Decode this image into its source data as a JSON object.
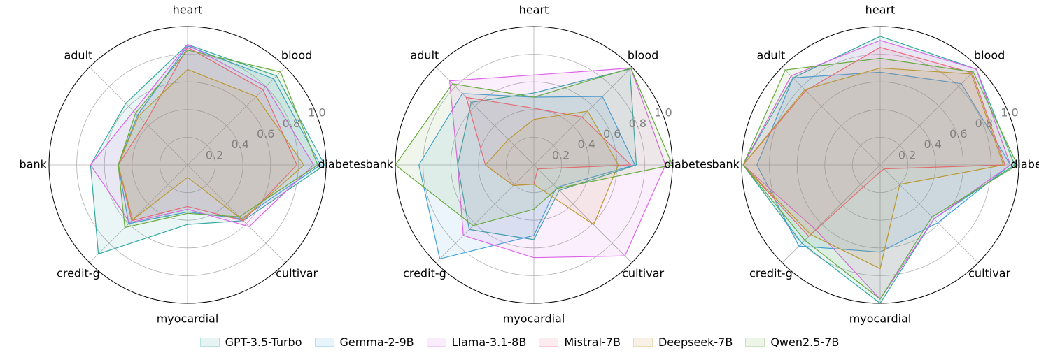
{
  "chart_data": [
    {
      "type": "radar",
      "axes": [
        "diabetes",
        "blood",
        "heart",
        "adult",
        "bank",
        "credit-g",
        "myocardial",
        "cultivar"
      ],
      "rticks": [
        0.2,
        0.4,
        0.6,
        0.8,
        1.0
      ],
      "rlim": [
        0,
        1.0
      ],
      "grid": true,
      "series": [
        {
          "name": "GPT-3.5-Turbo",
          "values": [
            0.99,
            0.91,
            0.87,
            0.63,
            0.7,
            0.91,
            0.43,
            0.57
          ]
        },
        {
          "name": "Gemma-2-9B",
          "values": [
            0.96,
            0.88,
            0.86,
            0.51,
            0.5,
            0.6,
            0.34,
            0.55
          ]
        },
        {
          "name": "Llama-3.1-8B",
          "values": [
            0.91,
            0.8,
            0.87,
            0.55,
            0.7,
            0.59,
            0.32,
            0.63
          ]
        },
        {
          "name": "Mistral-7B",
          "values": [
            0.79,
            0.77,
            0.85,
            0.43,
            0.5,
            0.57,
            0.3,
            0.57
          ]
        },
        {
          "name": "Deepseek-7B",
          "values": [
            0.84,
            0.7,
            0.69,
            0.5,
            0.5,
            0.56,
            0.09,
            0.56
          ]
        },
        {
          "name": "Qwen2.5-7B",
          "values": [
            0.94,
            0.95,
            0.83,
            0.53,
            0.5,
            0.64,
            0.35,
            0.53
          ]
        }
      ]
    },
    {
      "type": "radar",
      "axes": [
        "diabetes",
        "blood",
        "heart",
        "adult",
        "bank",
        "credit-g",
        "myocardial",
        "cultivar"
      ],
      "rticks": [
        0.2,
        0.4,
        0.6,
        0.8,
        1.0
      ],
      "rlim": [
        0,
        1.0
      ],
      "grid": true,
      "series": [
        {
          "name": "GPT-3.5-Turbo",
          "values": [
            0.74,
            0.98,
            0.52,
            0.64,
            0.55,
            0.66,
            0.54,
            0.26
          ]
        },
        {
          "name": "Gemma-2-9B",
          "values": [
            0.73,
            0.7,
            0.49,
            0.73,
            0.83,
            0.96,
            0.51,
            0.23
          ]
        },
        {
          "name": "Llama-3.1-8B",
          "values": [
            0.95,
            0.99,
            0.65,
            0.86,
            0.55,
            0.72,
            0.67,
            0.93
          ]
        },
        {
          "name": "Mistral-7B",
          "values": [
            0.7,
            0.49,
            0.41,
            0.69,
            0.35,
            0.21,
            0.14,
            0.04
          ]
        },
        {
          "name": "Deepseek-7B",
          "values": [
            0.61,
            0.55,
            0.33,
            0.26,
            0.35,
            0.21,
            0.14,
            0.61
          ]
        },
        {
          "name": "Qwen2.5-7B",
          "values": [
            1.0,
            0.99,
            0.49,
            0.83,
            1.0,
            0.62,
            0.32,
            0.24
          ]
        }
      ]
    },
    {
      "type": "radar",
      "axes": [
        "diabetes",
        "blood",
        "heart",
        "adult",
        "bank",
        "credit-g",
        "myocardial",
        "cultivar"
      ],
      "rticks": [
        0.2,
        0.4,
        0.6,
        0.8,
        1.0
      ],
      "rlim": [
        0,
        1.0
      ],
      "grid": true,
      "series": [
        {
          "name": "GPT-3.5-Turbo",
          "values": [
            0.97,
            0.98,
            0.93,
            0.89,
            0.99,
            0.8,
            1.0,
            0.55
          ]
        },
        {
          "name": "Gemma-2-9B",
          "values": [
            0.94,
            0.83,
            0.67,
            0.89,
            0.89,
            0.83,
            0.63,
            0.59
          ]
        },
        {
          "name": "Llama-3.1-8B",
          "values": [
            0.94,
            0.98,
            0.9,
            0.91,
            0.99,
            0.66,
            0.97,
            0.55
          ]
        },
        {
          "name": "Mistral-7B",
          "values": [
            0.9,
            0.94,
            0.85,
            0.76,
            0.99,
            0.73,
            0.05,
            0.04
          ]
        },
        {
          "name": "Deepseek-7B",
          "values": [
            0.89,
            0.93,
            0.7,
            0.77,
            0.99,
            0.71,
            0.75,
            0.2
          ]
        },
        {
          "name": "Qwen2.5-7B",
          "values": [
            0.99,
            0.95,
            0.77,
            0.97,
            0.99,
            0.77,
            0.97,
            0.53
          ]
        }
      ]
    }
  ],
  "legend": [
    {
      "label": "GPT-3.5-Turbo",
      "color": "#32a89e"
    },
    {
      "label": "Gemma-2-9B",
      "color": "#3fa1dc"
    },
    {
      "label": "Llama-3.1-8B",
      "color": "#de63ea"
    },
    {
      "label": "Mistral-7B",
      "color": "#f0657e"
    },
    {
      "label": "Deepseek-7B",
      "color": "#c39731"
    },
    {
      "label": "Qwen2.5-7B",
      "color": "#68aa3f"
    }
  ]
}
